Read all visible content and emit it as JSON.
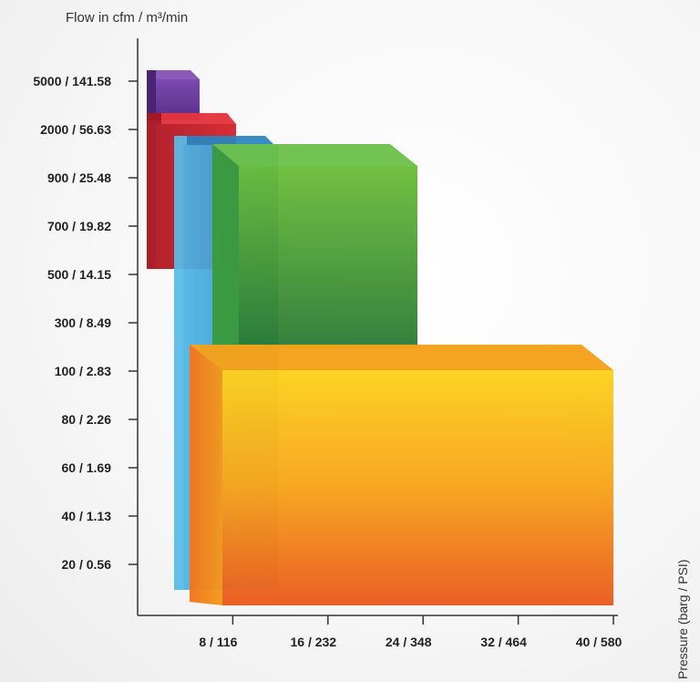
{
  "chart_data": {
    "type": "bar",
    "title": "",
    "ylabel": "Flow in cfm / m³/min",
    "xlabel": "Pressure (barg / PSI)",
    "y_ticks": [
      "20 / 0.56",
      "40 / 1.13",
      "60 / 1.69",
      "80 / 2.26",
      "100 / 2.83",
      "300 / 8.49",
      "500 / 14.15",
      "700 / 19.82",
      "900 / 25.48",
      "2000 / 56.63",
      "5000 / 141.58"
    ],
    "x_ticks": [
      "8 / 116",
      "16 / 232",
      "24 / 348",
      "32 / 464",
      "40 / 580"
    ],
    "x_tick_values": [
      8,
      16,
      24,
      32,
      40
    ],
    "x_range": [
      0,
      40
    ],
    "series": [
      {
        "color": "#f07a1a",
        "top_color": "#f5a31a",
        "pressure_range": [
          4,
          40
        ],
        "flow_range_cfm": [
          0,
          100
        ]
      },
      {
        "color": "#3aa0d8",
        "top_color": "#2a86c0",
        "pressure_range": [
          3,
          11
        ],
        "flow_range_cfm": [
          0,
          900
        ]
      },
      {
        "color": "#3a9a38",
        "top_color": "#5ab54a",
        "pressure_range": [
          6,
          24
        ],
        "flow_range_cfm": [
          300,
          900
        ]
      },
      {
        "color": "#c8202a",
        "top_color": "#e0303a",
        "pressure_range": [
          0.5,
          8
        ],
        "flow_range_cfm": [
          500,
          2000
        ]
      },
      {
        "color": "#6a3a9a",
        "top_color": "#8a5ab8",
        "pressure_range": [
          0.5,
          4
        ],
        "flow_range_cfm": [
          2000,
          5000
        ]
      }
    ]
  }
}
